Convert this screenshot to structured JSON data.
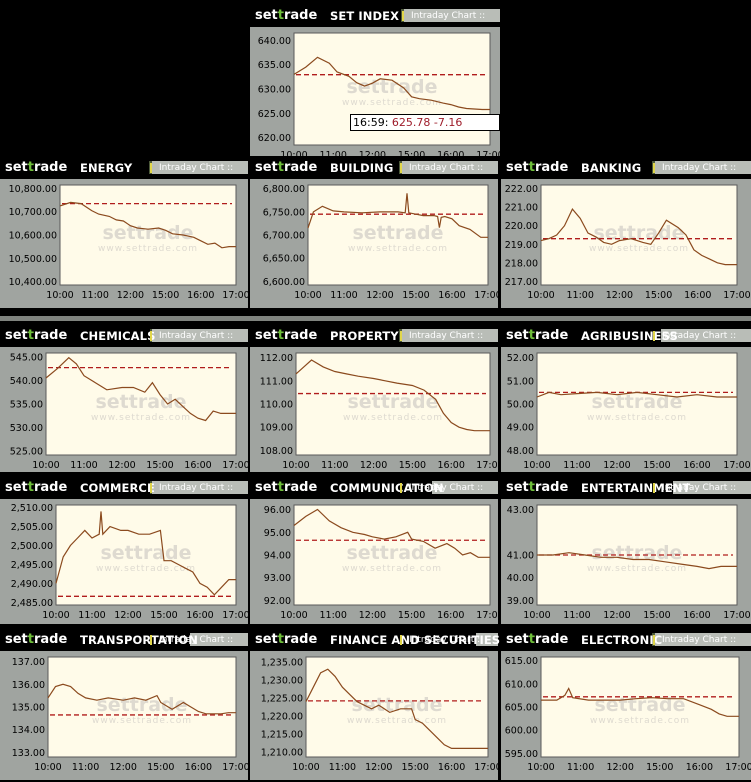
{
  "brand": {
    "p1": "set",
    "p2": "t",
    "p3": "rade"
  },
  "intraday_label": "Intraday Chart ::",
  "watermark": {
    "main": "settrade",
    "sub": "www.settrade.com"
  },
  "tooltip": {
    "time": "16:59:",
    "value": "625.78",
    "change": "-7.16"
  },
  "chart_data": [
    {
      "id": "set",
      "title": "SET INDEX",
      "type": "line",
      "x_labels": [
        "10:00",
        "11:00",
        "12:00",
        "15:00",
        "16:00",
        "17:00"
      ],
      "y_ticks": [
        "640.00",
        "635.00",
        "630.00",
        "625.00",
        "620.00"
      ],
      "ylim": [
        618.5,
        641.5
      ],
      "prev_close": 632.94,
      "x": [
        0,
        0.3,
        0.6,
        0.9,
        1.1,
        1.4,
        1.6,
        1.8,
        2,
        2.2,
        2.5,
        2.8,
        3,
        3.2,
        3.5,
        3.8,
        4,
        4.2,
        4.4,
        4.6,
        4.8,
        5
      ],
      "values": [
        633.0,
        634.5,
        636.5,
        635.3,
        633.5,
        632.6,
        631.3,
        630.6,
        631.2,
        632.1,
        631.8,
        630.2,
        628.4,
        628.0,
        627.7,
        627.1,
        626.8,
        626.3,
        626.0,
        625.9,
        625.8,
        625.8
      ]
    },
    {
      "id": "energy",
      "title": "ENERGY",
      "type": "line",
      "x_labels": [
        "10:00",
        "11:00",
        "12:00",
        "15:00",
        "16:00",
        "17:00"
      ],
      "y_ticks": [
        "10,800.00",
        "10,700.00",
        "10,600.00",
        "10,500.00",
        "10,400.00"
      ],
      "ylim": [
        10385,
        10815
      ],
      "prev_close": 10735,
      "x": [
        0,
        0.3,
        0.6,
        0.9,
        1.1,
        1.4,
        1.6,
        1.8,
        2,
        2.2,
        2.5,
        2.8,
        3,
        3.2,
        3.5,
        3.8,
        4,
        4.2,
        4.4,
        4.6,
        4.8,
        5
      ],
      "values": [
        10725,
        10740,
        10735,
        10705,
        10690,
        10680,
        10665,
        10660,
        10640,
        10630,
        10625,
        10630,
        10620,
        10605,
        10600,
        10590,
        10575,
        10560,
        10565,
        10545,
        10550,
        10550
      ]
    },
    {
      "id": "building",
      "title": "BUILDING",
      "type": "line",
      "x_labels": [
        "10:00",
        "11:00",
        "12:00",
        "15:00",
        "16:00",
        "17:00"
      ],
      "y_ticks": [
        "6,800.00",
        "6,750.00",
        "6,700.00",
        "6,650.00",
        "6,600.00"
      ],
      "ylim": [
        6592,
        6808
      ],
      "prev_close": 6745,
      "x": [
        0,
        0.15,
        0.4,
        0.7,
        1,
        1.5,
        2,
        2.5,
        2.7,
        2.75,
        2.8,
        3,
        3.2,
        3.5,
        3.6,
        3.65,
        3.7,
        3.8,
        4,
        4.2,
        4.5,
        4.8,
        5
      ],
      "values": [
        6715,
        6750,
        6762,
        6752,
        6750,
        6748,
        6750,
        6750,
        6748,
        6790,
        6748,
        6745,
        6742,
        6742,
        6740,
        6716,
        6738,
        6740,
        6735,
        6720,
        6712,
        6695,
        6695
      ]
    },
    {
      "id": "banking",
      "title": "BANKING",
      "type": "line",
      "x_labels": [
        "10:00",
        "11:00",
        "12:00",
        "15:00",
        "16:00",
        "17:00"
      ],
      "y_ticks": [
        "222.00",
        "221.00",
        "220.00",
        "219.00",
        "218.00",
        "217.00"
      ],
      "ylim": [
        216.8,
        222.2
      ],
      "prev_close": 219.3,
      "x": [
        0,
        0.2,
        0.4,
        0.6,
        0.8,
        1,
        1.2,
        1.4,
        1.6,
        1.8,
        2,
        2.3,
        2.6,
        2.8,
        3,
        3.2,
        3.5,
        3.7,
        3.9,
        4.1,
        4.3,
        4.5,
        4.7,
        5
      ],
      "values": [
        219.2,
        219.3,
        219.5,
        220.0,
        220.9,
        220.4,
        219.6,
        219.4,
        219.1,
        219.0,
        219.2,
        219.3,
        219.1,
        219.0,
        219.6,
        220.3,
        219.9,
        219.5,
        218.7,
        218.4,
        218.2,
        218.0,
        217.9,
        217.9
      ]
    },
    {
      "id": "chemicals",
      "title": "CHEMICALS",
      "type": "line",
      "x_labels": [
        "10:00",
        "11:00",
        "12:00",
        "15:00",
        "16:00",
        "17:00"
      ],
      "y_ticks": [
        "545.00",
        "540.00",
        "535.00",
        "530.00",
        "525.00"
      ],
      "ylim": [
        524.2,
        545.8
      ],
      "prev_close": 542.7,
      "x": [
        0,
        0.3,
        0.6,
        0.8,
        1,
        1.3,
        1.6,
        2,
        2.3,
        2.6,
        2.8,
        3,
        3.2,
        3.4,
        3.6,
        3.8,
        4,
        4.2,
        4.4,
        4.6,
        4.8,
        5
      ],
      "values": [
        540.5,
        542.5,
        544.8,
        543.5,
        541.0,
        539.5,
        538.0,
        538.5,
        538.5,
        537.5,
        539.5,
        537.0,
        535.0,
        536.0,
        534.5,
        533.0,
        532.0,
        531.5,
        533.5,
        533.0,
        533.0,
        533.0
      ]
    },
    {
      "id": "property",
      "title": "PROPERTY",
      "type": "line",
      "x_labels": [
        "10:00",
        "11:00",
        "12:00",
        "15:00",
        "16:00",
        "17:00"
      ],
      "y_ticks": [
        "112.00",
        "111.00",
        "110.00",
        "109.00",
        "108.00"
      ],
      "ylim": [
        107.8,
        112.2
      ],
      "prev_close": 110.45,
      "x": [
        0,
        0.2,
        0.4,
        0.7,
        1,
        1.3,
        1.6,
        2,
        2.3,
        2.6,
        3,
        3.3,
        3.6,
        3.8,
        4,
        4.2,
        4.4,
        4.6,
        4.8,
        5
      ],
      "values": [
        111.3,
        111.6,
        111.9,
        111.6,
        111.4,
        111.3,
        111.2,
        111.1,
        111.0,
        110.9,
        110.8,
        110.6,
        110.2,
        109.6,
        109.2,
        109.0,
        108.9,
        108.85,
        108.85,
        108.85
      ]
    },
    {
      "id": "agribusiness",
      "title": "AGRIBUSINESS",
      "type": "line",
      "x_labels": [
        "10:00",
        "11:00",
        "12:00",
        "15:00",
        "16:00",
        "17:00"
      ],
      "y_ticks": [
        "52.00",
        "51.00",
        "50.00",
        "49.00",
        "48.00"
      ],
      "ylim": [
        47.8,
        52.2
      ],
      "prev_close": 50.5,
      "x": [
        0,
        0.3,
        0.6,
        1,
        1.5,
        2,
        2.5,
        3,
        3.5,
        4,
        4.5,
        5
      ],
      "values": [
        50.3,
        50.5,
        50.4,
        50.45,
        50.5,
        50.4,
        50.5,
        50.4,
        50.3,
        50.4,
        50.3,
        50.3
      ]
    },
    {
      "id": "commerce",
      "title": "COMMERCE",
      "type": "line",
      "x_labels": [
        "10:00",
        "11:00",
        "12:00",
        "15:00",
        "16:00",
        "17:00"
      ],
      "y_ticks": [
        "2,510.00",
        "2,505.00",
        "2,500.00",
        "2,495.00",
        "2,490.00",
        "2,485.00"
      ],
      "ylim": [
        2484.3,
        2510.7
      ],
      "prev_close": 2486.6,
      "x": [
        0,
        0.2,
        0.4,
        0.6,
        0.8,
        1,
        1.2,
        1.25,
        1.3,
        1.5,
        1.8,
        2,
        2.3,
        2.6,
        2.9,
        3,
        3.2,
        3.4,
        3.6,
        3.8,
        4,
        4.2,
        4.4,
        4.6,
        4.8,
        5
      ],
      "values": [
        2490,
        2497,
        2500,
        2502,
        2504,
        2502,
        2503,
        2509,
        2503,
        2505,
        2504,
        2504,
        2503,
        2503,
        2504,
        2496,
        2496,
        2495,
        2494,
        2493,
        2490,
        2489,
        2487,
        2489,
        2491,
        2491
      ]
    },
    {
      "id": "communication",
      "title": "COMMUNICATION",
      "type": "line",
      "x_labels": [
        "10:00",
        "11:00",
        "12:00",
        "15:00",
        "16:00",
        "17:00"
      ],
      "y_ticks": [
        "96.00",
        "95.00",
        "94.00",
        "93.00",
        "92.00"
      ],
      "ylim": [
        91.8,
        96.2
      ],
      "prev_close": 94.65,
      "x": [
        0,
        0.3,
        0.6,
        0.9,
        1.2,
        1.5,
        1.8,
        2,
        2.3,
        2.6,
        2.9,
        3,
        3.3,
        3.6,
        3.9,
        4.1,
        4.3,
        4.5,
        4.7,
        5
      ],
      "values": [
        95.3,
        95.7,
        96.0,
        95.5,
        95.2,
        95.0,
        94.9,
        94.8,
        94.7,
        94.8,
        95.0,
        94.7,
        94.6,
        94.3,
        94.5,
        94.3,
        94.0,
        94.1,
        93.9,
        93.9
      ]
    },
    {
      "id": "entertainment",
      "title": "ENTERTAINMENT",
      "type": "line",
      "x_labels": [
        "10:00",
        "11:00",
        "12:00",
        "15:00",
        "16:00",
        "17:00"
      ],
      "y_ticks": [
        "43.00",
        "41.00",
        "40.00",
        "39.00"
      ],
      "ylim": [
        38.8,
        43.2
      ],
      "prev_close": 41.0,
      "x": [
        0,
        0.4,
        0.8,
        1.2,
        1.6,
        2,
        2.4,
        2.8,
        3.2,
        3.6,
        4,
        4.3,
        4.6,
        5
      ],
      "values": [
        41.0,
        41.0,
        41.1,
        41.0,
        40.9,
        40.9,
        40.8,
        40.8,
        40.7,
        40.6,
        40.5,
        40.4,
        40.5,
        40.5
      ]
    },
    {
      "id": "transportation",
      "title": "TRANSPORTATION",
      "type": "line",
      "x_labels": [
        "10:00",
        "11:00",
        "12:00",
        "15:00",
        "16:00",
        "17:00"
      ],
      "y_ticks": [
        "137.00",
        "136.00",
        "135.00",
        "134.00",
        "133.00"
      ],
      "ylim": [
        132.8,
        137.2
      ],
      "prev_close": 134.65,
      "x": [
        0,
        0.2,
        0.4,
        0.6,
        0.8,
        1,
        1.3,
        1.6,
        2,
        2.3,
        2.6,
        2.9,
        3,
        3.3,
        3.6,
        3.8,
        4,
        4.2,
        4.4,
        4.6,
        4.8,
        5
      ],
      "values": [
        135.4,
        135.9,
        136.0,
        135.9,
        135.6,
        135.4,
        135.3,
        135.4,
        135.3,
        135.4,
        135.3,
        135.5,
        135.2,
        134.9,
        135.2,
        135.0,
        134.8,
        134.7,
        134.7,
        134.7,
        134.75,
        134.75
      ]
    },
    {
      "id": "finance",
      "title": "FINANCE AND SECURITIES",
      "type": "line",
      "x_labels": [
        "10:00",
        "11:00",
        "12:00",
        "15:00",
        "16:00",
        "17:00"
      ],
      "y_ticks": [
        "1,235.00",
        "1,230.00",
        "1,225.00",
        "1,220.00",
        "1,215.00",
        "1,210.00"
      ],
      "ylim": [
        1208.6,
        1236.4
      ],
      "prev_close": 1224.2,
      "x": [
        0,
        0.2,
        0.4,
        0.6,
        0.8,
        1,
        1.2,
        1.4,
        1.6,
        1.8,
        2,
        2.3,
        2.6,
        2.9,
        3,
        3.2,
        3.4,
        3.6,
        3.8,
        4,
        4.2,
        4.4,
        4.6,
        4.8,
        5
      ],
      "values": [
        1224,
        1228,
        1232,
        1233,
        1231,
        1228,
        1226,
        1224,
        1223,
        1222,
        1223,
        1221,
        1222,
        1222,
        1219,
        1218,
        1216,
        1214,
        1212,
        1211,
        1211,
        1211,
        1211,
        1211,
        1211
      ]
    },
    {
      "id": "electronic",
      "title": "ELECTRONIC",
      "type": "line",
      "x_labels": [
        "10:00",
        "11:00",
        "12:00",
        "15:00",
        "16:00",
        "17:00"
      ],
      "y_ticks": [
        "615.00",
        "610.00",
        "605.00",
        "600.00",
        "595.00"
      ],
      "ylim": [
        594.2,
        615.8
      ],
      "prev_close": 607.2,
      "x": [
        0,
        0.4,
        0.6,
        0.7,
        0.8,
        1.2,
        1.6,
        2,
        2.4,
        2.8,
        3.2,
        3.6,
        4,
        4.3,
        4.5,
        4.7,
        5
      ],
      "values": [
        606.5,
        606.5,
        607.5,
        609.0,
        607.0,
        606.5,
        606.5,
        606.5,
        606.8,
        607.0,
        606.8,
        606.8,
        605.5,
        604.5,
        603.5,
        603.0,
        603.0
      ]
    }
  ]
}
